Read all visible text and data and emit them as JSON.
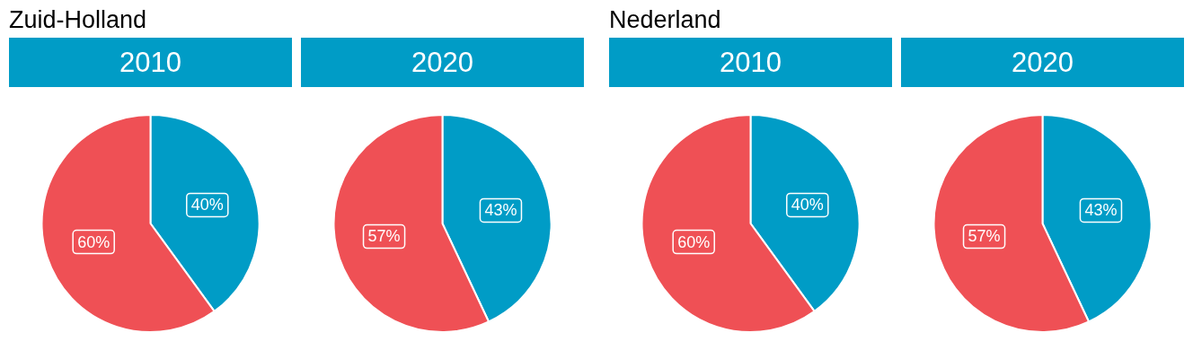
{
  "chart_data": [
    {
      "type": "pie",
      "title": "Zuid-Holland",
      "subtitle": "2010",
      "categories": [
        null,
        null
      ],
      "values": [
        40,
        60
      ],
      "colors": [
        "#009cc6",
        "#ef5055"
      ],
      "value_labels": [
        "40%",
        "60%"
      ]
    },
    {
      "type": "pie",
      "subtitle": "2020",
      "categories": [
        null,
        null
      ],
      "values": [
        43,
        57
      ],
      "colors": [
        "#009cc6",
        "#ef5055"
      ],
      "value_labels": [
        "43%",
        "57%"
      ]
    },
    {
      "type": "pie",
      "title": "Nederland",
      "subtitle": "2010",
      "categories": [
        null,
        null
      ],
      "values": [
        40,
        60
      ],
      "colors": [
        "#009cc6",
        "#ef5055"
      ],
      "value_labels": [
        "40%",
        "60%"
      ]
    },
    {
      "type": "pie",
      "subtitle": "2020",
      "categories": [
        null,
        null
      ],
      "values": [
        43,
        57
      ],
      "colors": [
        "#009cc6",
        "#ef5055"
      ],
      "value_labels": [
        "43%",
        "57%"
      ]
    }
  ]
}
